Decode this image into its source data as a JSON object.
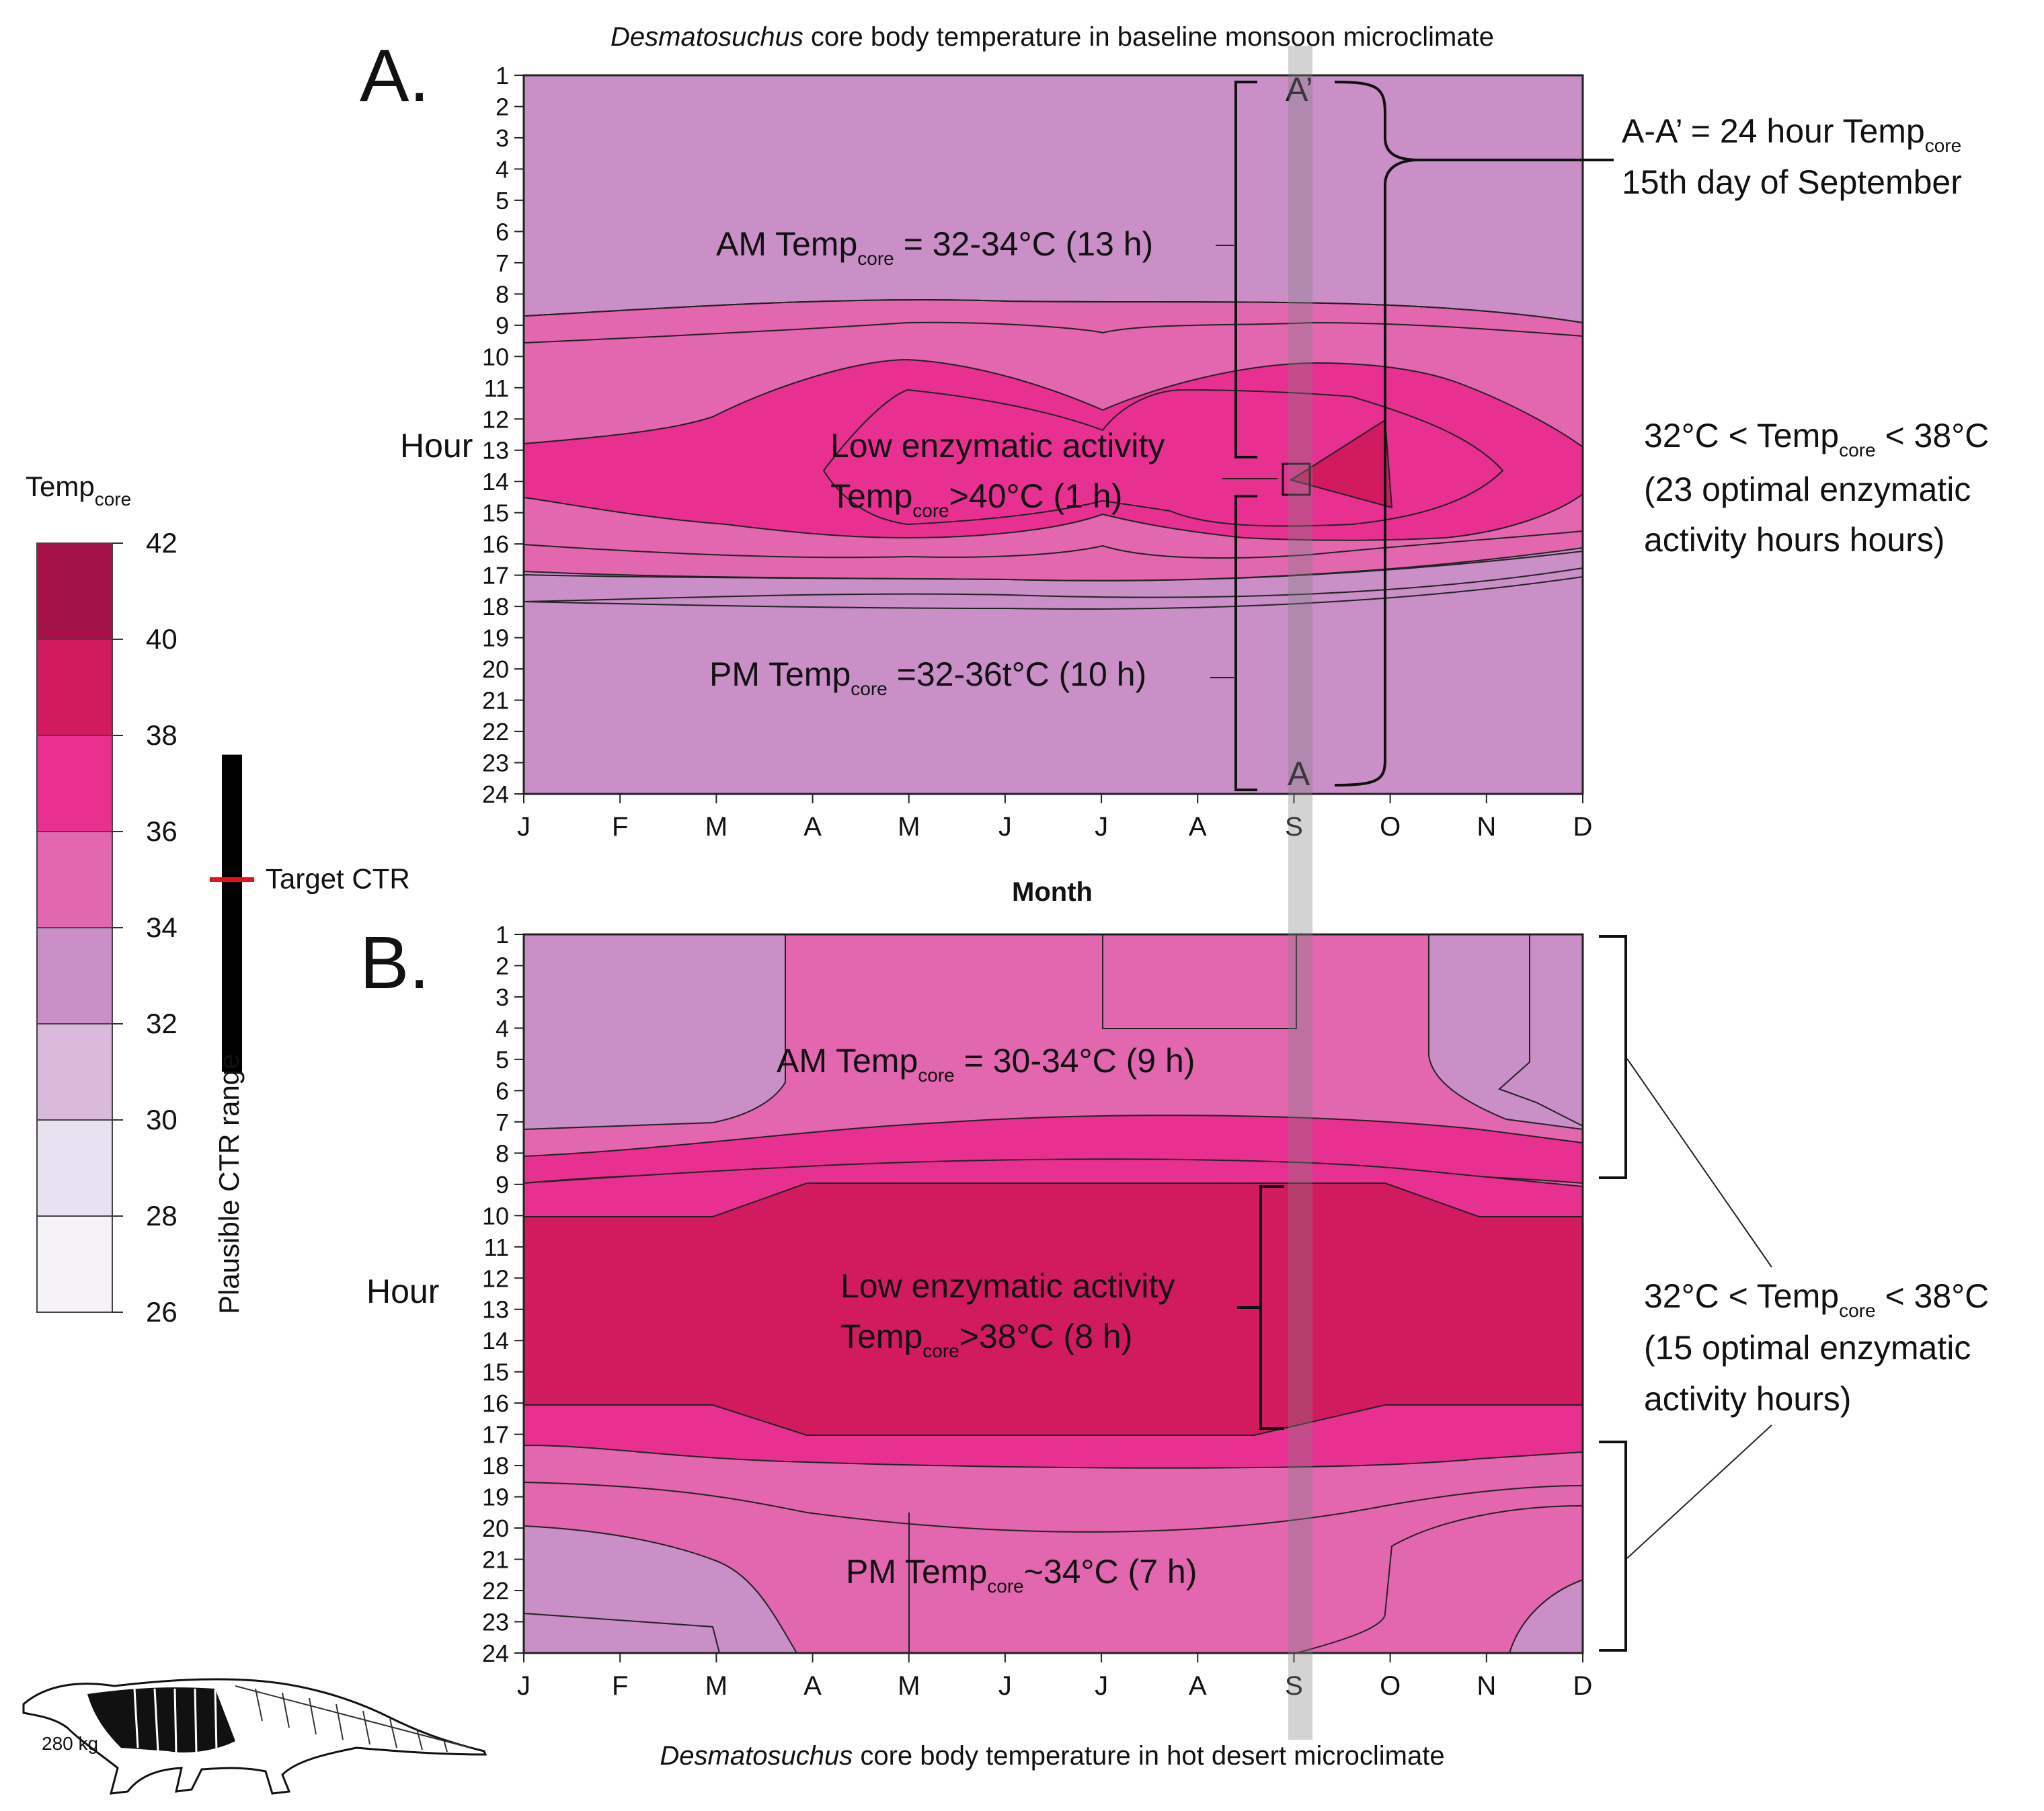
{
  "chart_data": [
    {
      "panel": "A.",
      "type": "heatmap",
      "title_species": "Desmatosuchus",
      "title_rest": " core body temperature in baseline monsoon microclimate",
      "xlabel": "Month",
      "ylabel": "Hour",
      "months": [
        "J",
        "F",
        "M",
        "A",
        "M",
        "J",
        "J",
        "A",
        "S",
        "O",
        "N",
        "D"
      ],
      "hours": [
        1,
        2,
        3,
        4,
        5,
        6,
        7,
        8,
        9,
        10,
        11,
        12,
        13,
        14,
        15,
        16,
        17,
        18,
        19,
        20,
        21,
        22,
        23,
        24
      ],
      "annotations": {
        "am_prefix": "AM Temp",
        "am_sub": "core",
        "am_rest": " = 32-34°C (13 h)",
        "low_line1": "Low enzymatic activity",
        "low_prefix": "Temp",
        "low_sub": "core",
        "low_rest": ">40°C (1 h)",
        "pm_prefix": "PM Temp",
        "pm_sub": "core",
        "pm_rest": " =32-36t°C (10 h)",
        "a_top": "A’",
        "a_bottom": "A",
        "aa_line1_prefix": "A-A’ = 24 hour Temp",
        "aa_line1_sub": "core",
        "aa_line2": "15th day of September",
        "range_prefix": "32°C < Temp",
        "range_sub": "core",
        "range_rest": " < 38°C",
        "range_line2": "(23 optimal enzymatic",
        "range_line3": "activity hours hours)"
      }
    },
    {
      "panel": "B.",
      "type": "heatmap",
      "title_species": "Desmatosuchus",
      "title_rest": " core body temperature in hot desert microclimate",
      "ylabel": "Hour",
      "months": [
        "J",
        "F",
        "M",
        "A",
        "M",
        "J",
        "J",
        "A",
        "S",
        "O",
        "N",
        "D"
      ],
      "hours": [
        1,
        2,
        3,
        4,
        5,
        6,
        7,
        8,
        9,
        10,
        11,
        12,
        13,
        14,
        15,
        16,
        17,
        18,
        19,
        20,
        21,
        22,
        23,
        24
      ],
      "annotations": {
        "am_prefix": "AM Temp",
        "am_sub": "core",
        "am_rest": " = 30-34°C (9 h)",
        "low_line1": "Low enzymatic activity",
        "low_prefix": "Temp",
        "low_sub": "core",
        "low_rest": ">38°C (8 h)",
        "pm_prefix": "PM Temp",
        "pm_sub": "core",
        "pm_rest": "~34°C (7 h)",
        "range_prefix": "32°C < Temp",
        "range_sub": "core",
        "range_rest": " < 38°C",
        "range_line2": "(15 optimal enzymatic",
        "range_line3": "activity hours)"
      }
    }
  ],
  "legend": {
    "title_prefix": "Temp",
    "title_sub": "core",
    "ticks": [
      42,
      40,
      38,
      36,
      34,
      32,
      30,
      28,
      26
    ],
    "bins": [
      {
        "range": [
          40,
          42
        ],
        "color": "#a5124a"
      },
      {
        "range": [
          38,
          40
        ],
        "color": "#d21a60"
      },
      {
        "range": [
          36,
          38
        ],
        "color": "#e83090"
      },
      {
        "range": [
          34,
          36
        ],
        "color": "#e267ae"
      },
      {
        "range": [
          32,
          34
        ],
        "color": "#c98fc6"
      },
      {
        "range": [
          30,
          32
        ],
        "color": "#d9b9dc"
      },
      {
        "range": [
          28,
          30
        ],
        "color": "#e8e1ef"
      },
      {
        "range": [
          26,
          28
        ],
        "color": "#f5f3f8"
      }
    ],
    "target_label": "Target CTR",
    "target_value": 35,
    "range_label": "Plausible CTR range",
    "plausible_range": [
      31,
      37.6
    ]
  },
  "figure": {
    "weight_label": "280 kg"
  }
}
